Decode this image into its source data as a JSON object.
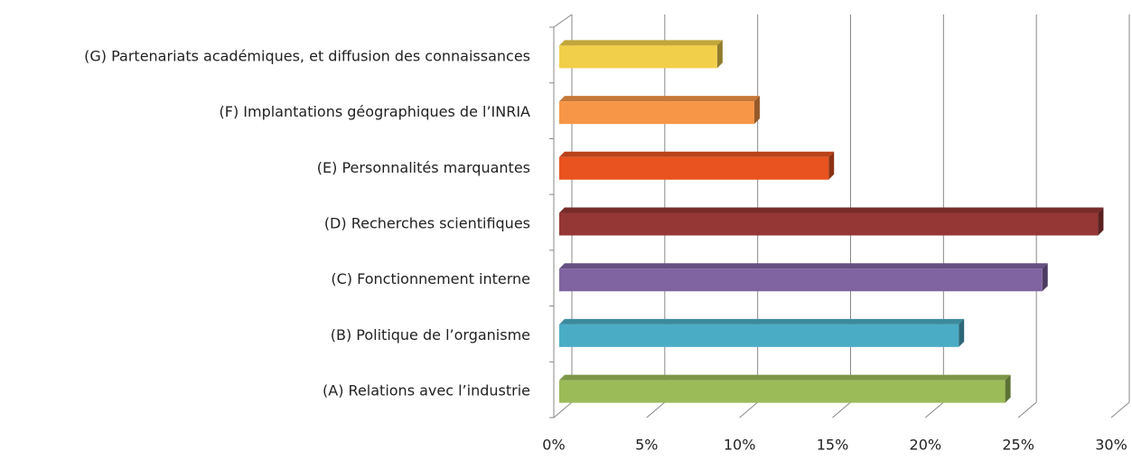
{
  "chart_data": {
    "type": "bar",
    "orientation": "horizontal",
    "categories": [
      "(A) Relations avec l’industrie",
      "(B) Politique de l’organisme",
      "(C) Fonctionnement interne",
      "(D) Recherches scientifiques",
      "(E) Personnalités marquantes",
      "(F) Implantations géographiques de l’INRIA",
      "(G) Partenariats académiques, et diffusion des connaissances"
    ],
    "values": [
      24,
      21.5,
      26,
      29,
      14.5,
      10.5,
      8.5
    ],
    "colors": [
      "#9bbb59",
      "#4bacc6",
      "#8064a2",
      "#953735",
      "#e8531f",
      "#f79646",
      "#f2cf4a"
    ],
    "xlim": [
      0,
      30
    ],
    "xticks": [
      {
        "value": 0,
        "label": "0%"
      },
      {
        "value": 5,
        "label": "5%"
      },
      {
        "value": 10,
        "label": "10%"
      },
      {
        "value": 15,
        "label": "15%"
      },
      {
        "value": 20,
        "label": "20%"
      },
      {
        "value": 25,
        "label": "25%"
      },
      {
        "value": 30,
        "label": "30%"
      }
    ],
    "grid": true
  }
}
